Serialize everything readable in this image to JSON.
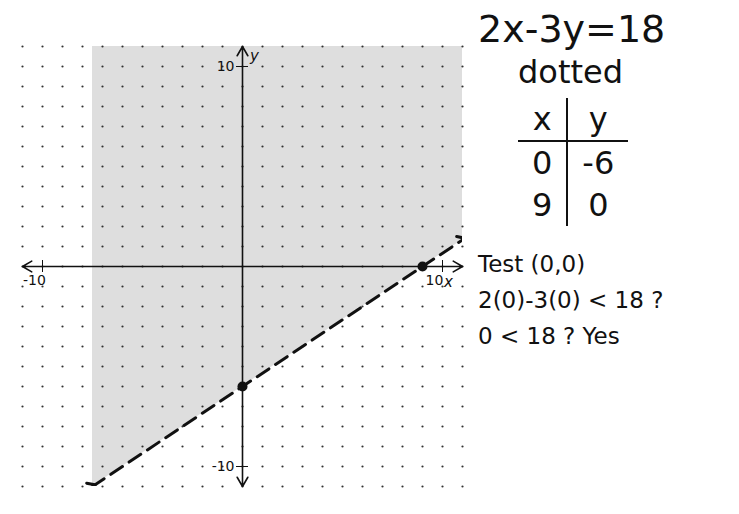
{
  "chart_data": {
    "type": "line",
    "x_label": "x",
    "y_label": "y",
    "xlim": [
      -11,
      11
    ],
    "ylim": [
      -11,
      11
    ],
    "xticks": [
      -10,
      10
    ],
    "yticks": [
      -10,
      10
    ],
    "grid": true,
    "series": [
      {
        "type": "area",
        "color": "#222222",
        "x": [
          -7.5,
          0,
          9,
          11
        ],
        "values": [
          -11,
          -6,
          0,
          1.33
        ]
      },
      {
        "type": "line",
        "color": "#111111",
        "line_style": "dashed",
        "marker": "arrow",
        "x": [
          -7.5,
          0,
          9,
          11
        ],
        "values": [
          -11,
          -6,
          0,
          1.33
        ]
      }
    ],
    "annotations": [
      "2x-3y=18",
      "dotted",
      "Test (0,0)",
      "2(0)-3(0) < 18 ?",
      "0 < 18 ? Yes"
    ],
    "table": {
      "columns": [
        "x",
        "y"
      ],
      "rows": [
        [
          0,
          -6
        ],
        [
          9,
          0
        ]
      ]
    }
  }
}
